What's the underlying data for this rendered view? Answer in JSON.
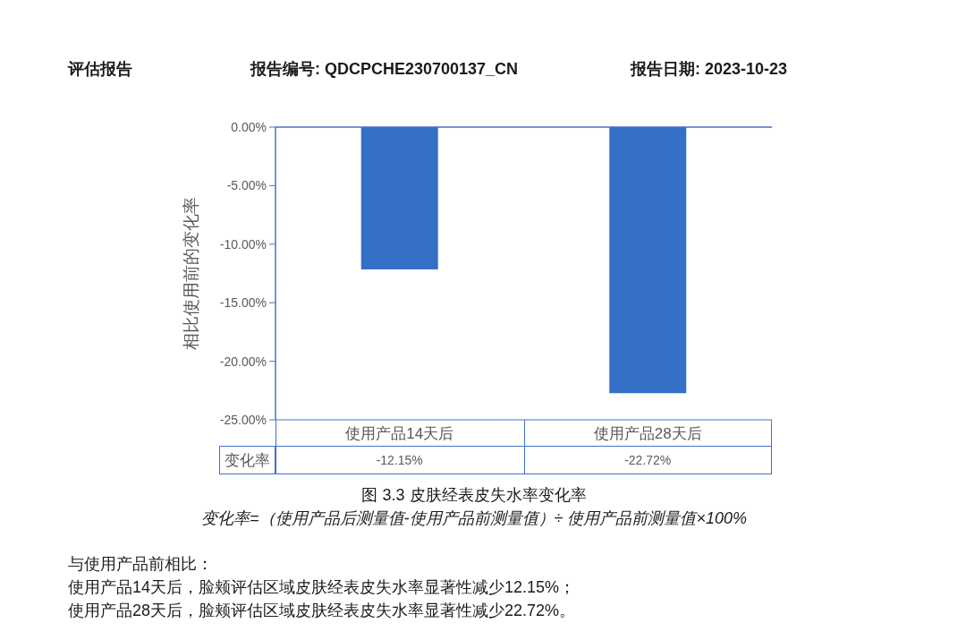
{
  "chart_data": {
    "type": "bar",
    "title": "图 3.3 皮肤经表皮失水率变化率",
    "ylabel": "相比使用前的变化率",
    "categories": [
      "使用产品14天后",
      "使用产品28天后"
    ],
    "series": [
      {
        "name": "变化率",
        "color": "#3470c6",
        "values": [
          -12.15,
          -22.72
        ],
        "value_labels": [
          "-12.15%",
          "-22.72%"
        ]
      }
    ],
    "ylim": [
      -25,
      0
    ],
    "yticks": [
      {
        "value": -25,
        "label": "-25.00%"
      },
      {
        "value": -20,
        "label": "-20.00%"
      },
      {
        "value": -15,
        "label": "-15.00%"
      },
      {
        "value": -10,
        "label": "-10.00%"
      },
      {
        "value": -5,
        "label": "-5.00%"
      },
      {
        "value": 0,
        "label": "0.00%"
      }
    ],
    "legend": "bottom left",
    "annotations": [
      "评估报告",
      "报告编号: QDCPCHE230700137_CN",
      "报告日期: 2023-10-23",
      "变化率=（使用产品后测量值-使用产品前测量值）÷ 使用产品前测量值×100%",
      "与使用产品前相比：",
      "使用产品14天后，脸颊评估区域皮肤经表皮失水率显著性减少12.15%；",
      "使用产品28天后，脸颊评估区域皮肤经表皮失水率显著性减少22.72%。"
    ]
  }
}
